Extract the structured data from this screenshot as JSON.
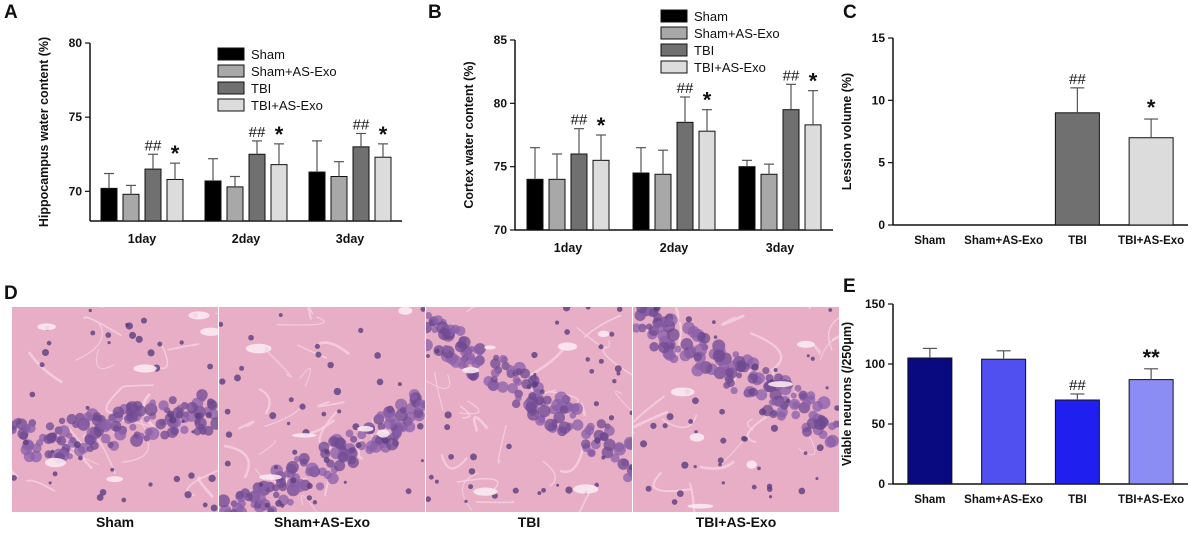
{
  "panels": {
    "A": {
      "letter": "A",
      "chart_data": {
        "type": "bar",
        "ylabel": "Hippocampus water content (%)",
        "ylim": [
          68,
          80
        ],
        "yticks": [
          70,
          75,
          80
        ],
        "categories": [
          "1day",
          "2day",
          "3day"
        ],
        "series": [
          {
            "name": "Sham",
            "values": [
              70.2,
              70.7,
              71.3
            ],
            "errors": [
              1.0,
              1.5,
              2.1
            ]
          },
          {
            "name": "Sham+AS-Exo",
            "values": [
              69.8,
              70.3,
              71.0
            ],
            "errors": [
              0.6,
              0.7,
              1.0
            ]
          },
          {
            "name": "TBI",
            "values": [
              71.5,
              72.5,
              73.0
            ],
            "errors": [
              1.0,
              0.9,
              0.9
            ]
          },
          {
            "name": "TBI+AS-Exo",
            "values": [
              70.8,
              71.8,
              72.3
            ],
            "errors": [
              1.1,
              1.4,
              0.9
            ]
          }
        ],
        "annotations": [
          {
            "series": 2,
            "category": 0,
            "text": "##"
          },
          {
            "series": 3,
            "category": 0,
            "text": "*"
          },
          {
            "series": 2,
            "category": 1,
            "text": "##"
          },
          {
            "series": 3,
            "category": 1,
            "text": "*"
          },
          {
            "series": 2,
            "category": 2,
            "text": "##"
          },
          {
            "series": 3,
            "category": 2,
            "text": "*"
          }
        ],
        "legend": "top-right",
        "colors": [
          "#000000",
          "#a8a8a8",
          "#707070",
          "#dcdcdc"
        ]
      }
    },
    "B": {
      "letter": "B",
      "chart_data": {
        "type": "bar",
        "ylabel": "Cortex water content (%)",
        "ylim": [
          70,
          85
        ],
        "yticks": [
          70,
          75,
          80,
          85
        ],
        "categories": [
          "1day",
          "2day",
          "3day"
        ],
        "series": [
          {
            "name": "Sham",
            "values": [
              74.0,
              74.5,
              75.0
            ],
            "errors": [
              2.5,
              2.0,
              0.5
            ]
          },
          {
            "name": "Sham+AS-Exo",
            "values": [
              74.0,
              74.4,
              74.4
            ],
            "errors": [
              2.0,
              1.9,
              0.8
            ]
          },
          {
            "name": "TBI",
            "values": [
              76.0,
              78.5,
              79.5
            ],
            "errors": [
              2.0,
              2.0,
              2.0
            ]
          },
          {
            "name": "TBI+AS-Exo",
            "values": [
              75.5,
              77.8,
              78.3
            ],
            "errors": [
              2.0,
              1.7,
              2.7
            ]
          }
        ],
        "annotations": [
          {
            "series": 2,
            "category": 0,
            "text": "##"
          },
          {
            "series": 3,
            "category": 0,
            "text": "*"
          },
          {
            "series": 2,
            "category": 1,
            "text": "##"
          },
          {
            "series": 3,
            "category": 1,
            "text": "*"
          },
          {
            "series": 2,
            "category": 2,
            "text": "##"
          },
          {
            "series": 3,
            "category": 2,
            "text": "*"
          }
        ],
        "legend": "top-right",
        "colors": [
          "#000000",
          "#a8a8a8",
          "#707070",
          "#dcdcdc"
        ]
      }
    },
    "C": {
      "letter": "C",
      "chart_data": {
        "type": "bar",
        "ylabel": "Lession volume (%)",
        "ylim": [
          0,
          15
        ],
        "yticks": [
          0,
          5,
          10,
          15
        ],
        "categories": [
          "Sham",
          "Sham+AS-Exo",
          "TBI",
          "TBI+AS-Exo"
        ],
        "values": [
          0,
          0,
          9.0,
          7.0
        ],
        "errors": [
          0,
          0,
          2.0,
          1.5
        ],
        "annotations": [
          "",
          "",
          "##",
          "*"
        ],
        "colors": [
          "#000000",
          "#a8a8a8",
          "#707070",
          "#dcdcdc"
        ]
      }
    },
    "D": {
      "letter": "D",
      "images": [
        {
          "caption": "Sham"
        },
        {
          "caption": "Sham+AS-Exo"
        },
        {
          "caption": "TBI"
        },
        {
          "caption": "TBI+AS-Exo"
        }
      ]
    },
    "E": {
      "letter": "E",
      "chart_data": {
        "type": "bar",
        "ylabel": "Viable neurons (/250μm)",
        "ylim": [
          0,
          150
        ],
        "yticks": [
          0,
          50,
          100,
          150
        ],
        "categories": [
          "Sham",
          "Sham+AS-Exo",
          "TBI",
          "TBI+AS-Exo"
        ],
        "values": [
          105,
          104,
          70,
          87
        ],
        "errors": [
          8,
          7,
          5,
          9
        ],
        "annotations": [
          "",
          "",
          "##",
          "**"
        ],
        "colors": [
          "#0a0a80",
          "#5050f0",
          "#1f1ff0",
          "#8c8cf5"
        ]
      }
    }
  }
}
